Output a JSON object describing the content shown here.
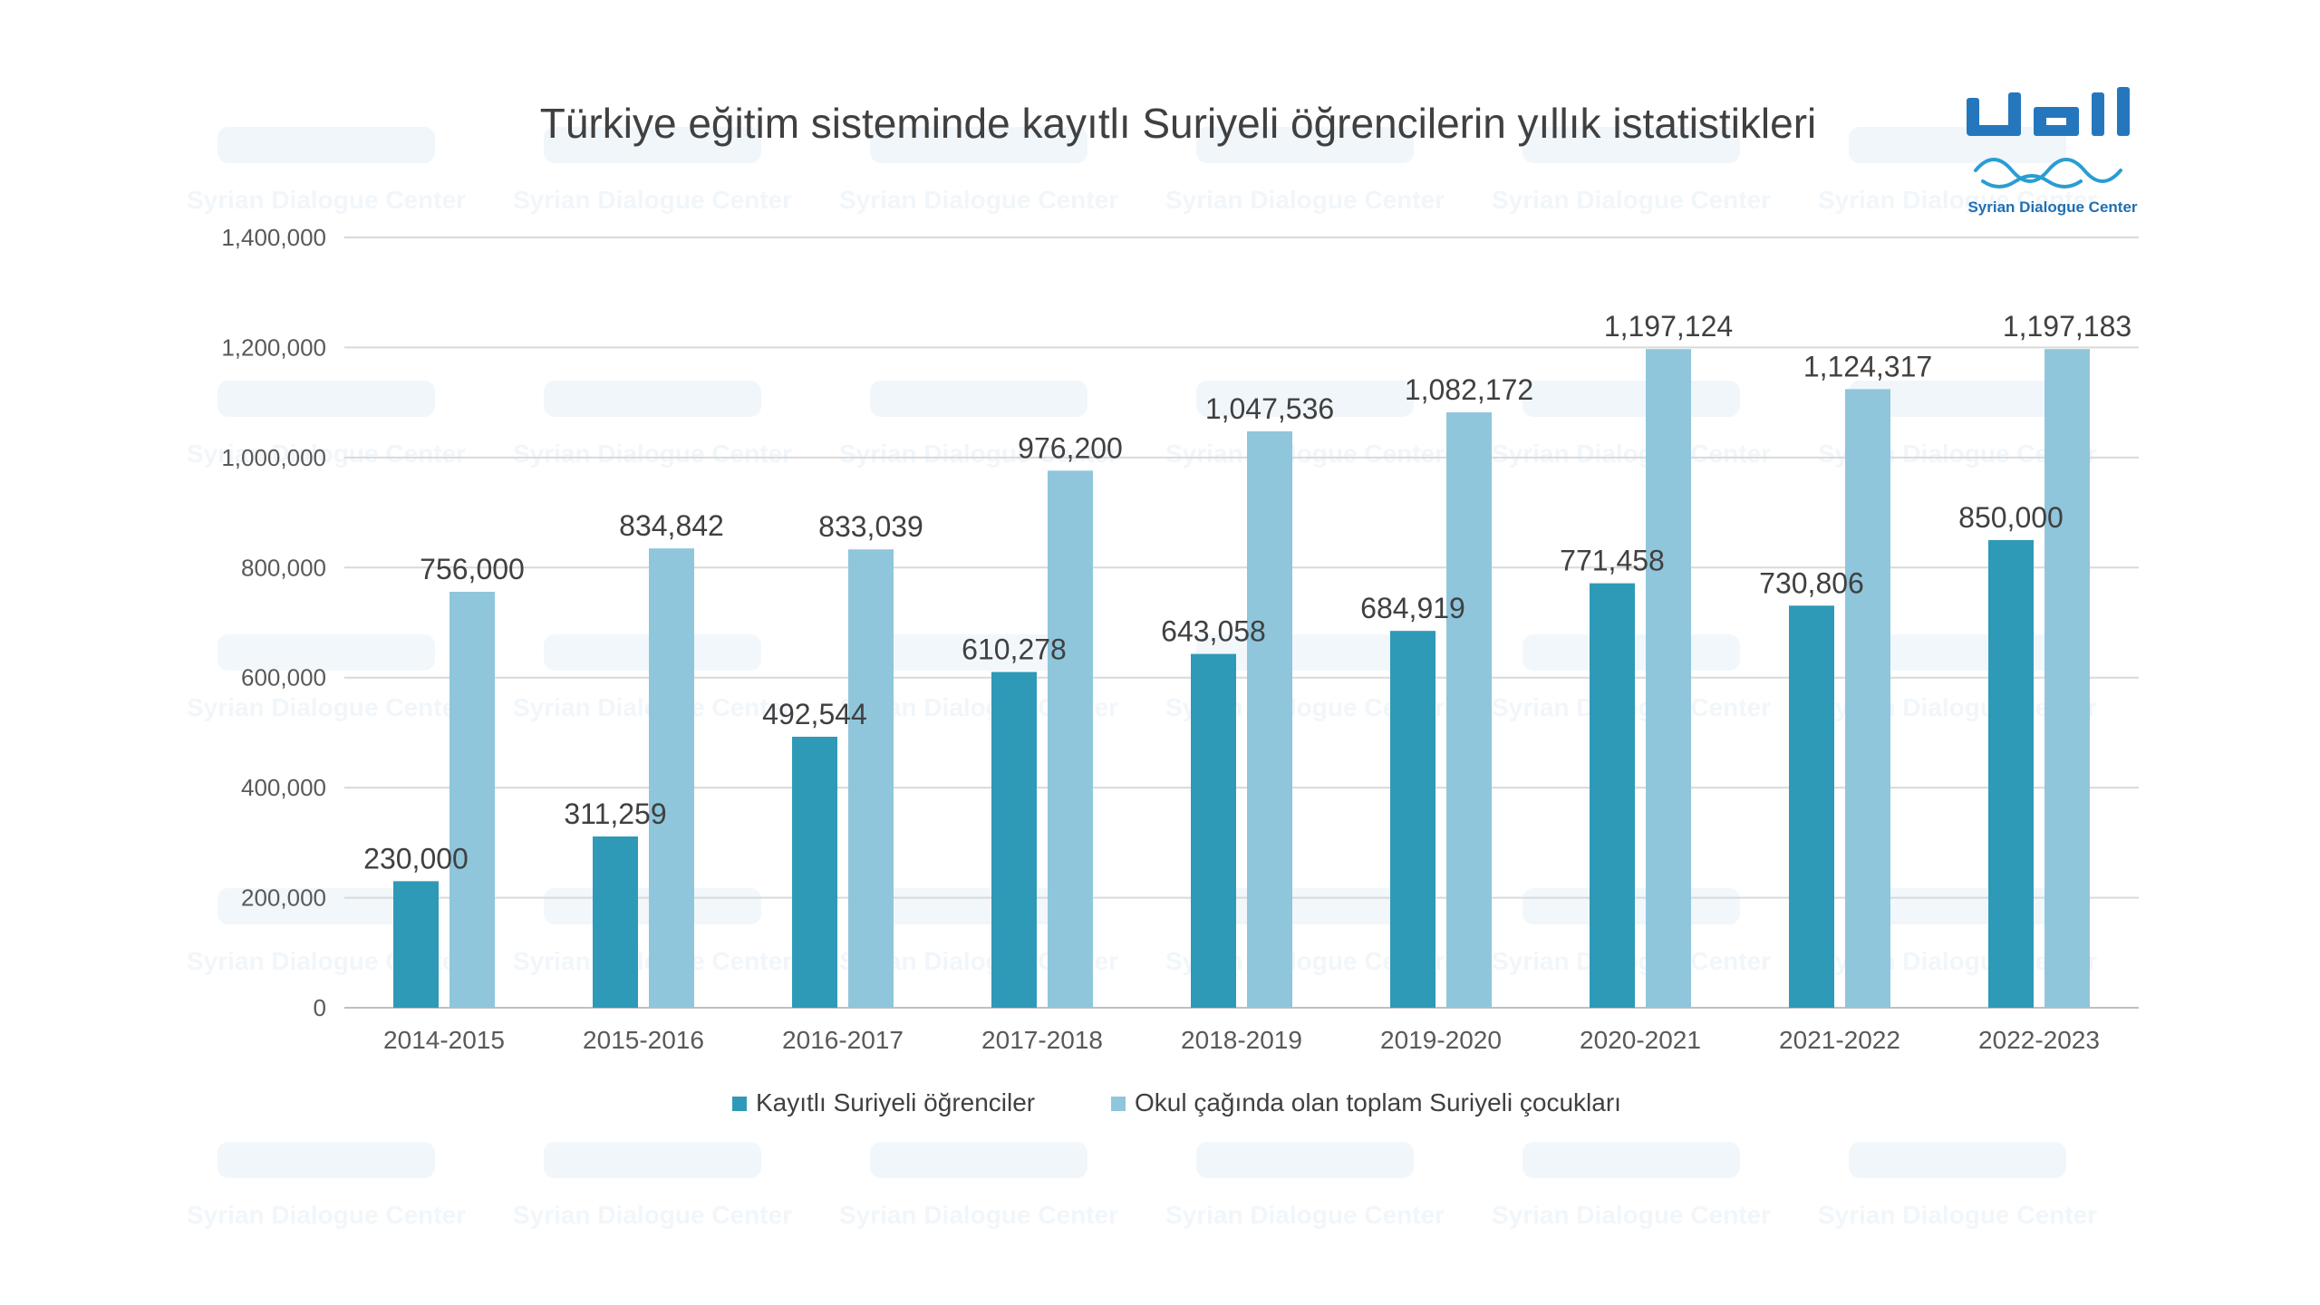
{
  "logo": {
    "brand_text": "Syrian Dialogue Center",
    "colors": {
      "primary": "#1f6fb3",
      "secondary": "#2a9dd2"
    }
  },
  "watermark": {
    "text": "Syrian Dialogue Center"
  },
  "chart_data": {
    "type": "bar",
    "title": "Türkiye eğitim sisteminde kayıtlı Suriyeli öğrencilerin yıllık istatistikleri",
    "xlabel": "",
    "ylabel": "",
    "categories": [
      "2014-2015",
      "2015-2016",
      "2016-2017",
      "2017-2018",
      "2018-2019",
      "2019-2020",
      "2020-2021",
      "2021-2022",
      "2022-2023"
    ],
    "series": [
      {
        "name": "Kayıtlı Suriyeli öğrenciler",
        "color": "#2e9ab7",
        "values": [
          230000,
          311259,
          492544,
          610278,
          643058,
          684919,
          771458,
          730806,
          850000
        ],
        "labels": [
          "230,000",
          "311,259",
          "492,544",
          "610,278",
          "643,058",
          "684,919",
          "771,458",
          "730,806",
          "850,000"
        ]
      },
      {
        "name": "Okul çağında olan toplam Suriyeli çocukları",
        "color": "#8fc6dc",
        "values": [
          756000,
          834842,
          833039,
          976200,
          1047536,
          1082172,
          1197124,
          1124317,
          1197183
        ],
        "labels": [
          "756,000",
          "834,842",
          "833,039",
          "976,200",
          "1,047,536",
          "1,082,172",
          "1,197,124",
          "1,124,317",
          "1,197,183"
        ]
      }
    ],
    "ylim": [
      0,
      1400000
    ],
    "yticks": [
      0,
      200000,
      400000,
      600000,
      800000,
      1000000,
      1200000,
      1400000
    ],
    "ytick_labels": [
      "0",
      "200,000",
      "400,000",
      "600,000",
      "800,000",
      "1,000,000",
      "1,200,000",
      "1,400,000"
    ],
    "grid": true,
    "legend": "bottom"
  }
}
